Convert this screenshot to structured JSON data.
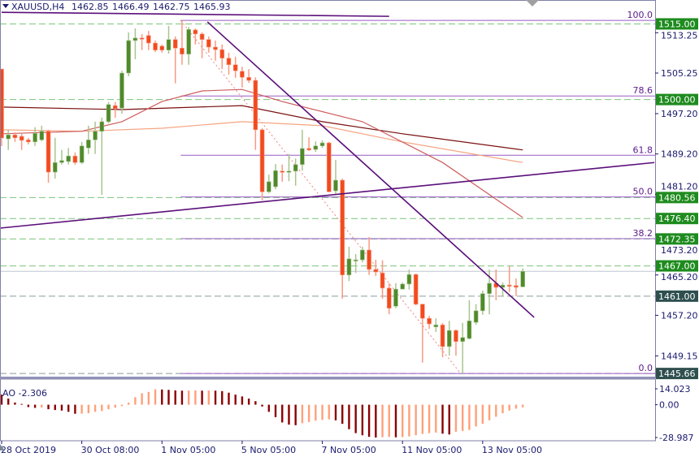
{
  "header": {
    "symbol": "XAUUSD,H4",
    "open": "1462.85",
    "high": "1466.49",
    "low": "1462.75",
    "close": "1465.93",
    "menu_icon": "triangle-down-icon"
  },
  "colors": {
    "bull": "#4f8a2b",
    "bear": "#f24a1e",
    "bull_wick": "#a9c48f",
    "bear_wick": "#f79a82",
    "level_green": "#1e8b1e",
    "level_dark": "#2f4f4f",
    "trendline": "#5b0f7a",
    "fib": "#9a5bc4",
    "ao_up": "#ffa07a",
    "ao_down": "#8b0000",
    "ma_slow": "#7a0f0f",
    "ma_mid": "#f4a582",
    "ma_fast": "#cd5c5c"
  },
  "chart_data": {
    "type": "candlestick",
    "symbol": "XAUUSD",
    "timeframe": "H4",
    "price_axis": {
      "ticks": [
        "1513.25",
        "1505.25",
        "1497.20",
        "1489.20",
        "1481.20",
        "1473.20",
        "1465.20",
        "1457.20",
        "1449.15"
      ],
      "range": [
        1445.0,
        1519.7
      ]
    },
    "time_axis": {
      "labels": [
        {
          "bar": 0,
          "text": "28 Oct 2019"
        },
        {
          "bar": 12,
          "text": "30 Oct 08:00"
        },
        {
          "bar": 24,
          "text": "1 Nov 05:00"
        },
        {
          "bar": 36,
          "text": "5 Nov 05:00"
        },
        {
          "bar": 48,
          "text": "7 Nov 05:00"
        },
        {
          "bar": 60,
          "text": "11 Nov 05:00"
        },
        {
          "bar": 72,
          "text": "13 Nov 05:00"
        }
      ]
    },
    "ohlc": [
      [
        1506.05,
        1506.05,
        1490.76,
        1492.37
      ],
      [
        1492.2,
        1494.0,
        1490.0,
        1493.0
      ],
      [
        1493.0,
        1493.5,
        1491.6,
        1492.4
      ],
      [
        1492.7,
        1493.2,
        1490.0,
        1491.9
      ],
      [
        1492.0,
        1492.4,
        1491.1,
        1491.6
      ],
      [
        1491.6,
        1494.5,
        1490.8,
        1493.3
      ],
      [
        1492.0,
        1494.8,
        1491.7,
        1493.7
      ],
      [
        1493.7,
        1494.0,
        1483.5,
        1485.6
      ],
      [
        1485.6,
        1492.4,
        1484.3,
        1487.5
      ],
      [
        1487.5,
        1490.0,
        1487.1,
        1487.9
      ],
      [
        1487.7,
        1490.4,
        1487.1,
        1488.8
      ],
      [
        1488.8,
        1489.5,
        1487.1,
        1487.5
      ],
      [
        1487.5,
        1491.6,
        1487.2,
        1490.8
      ],
      [
        1490.4,
        1494.8,
        1489.2,
        1492.0
      ],
      [
        1492.0,
        1495.6,
        1489.2,
        1493.7
      ],
      [
        1493.7,
        1496.4,
        1481.1,
        1495.6
      ],
      [
        1495.6,
        1499.5,
        1495.3,
        1499.0
      ],
      [
        1498.8,
        1499.5,
        1496.4,
        1498.2
      ],
      [
        1498.3,
        1505.7,
        1497.2,
        1505.25
      ],
      [
        1505.25,
        1513.3,
        1504.6,
        1511.7
      ],
      [
        1511.7,
        1514.1,
        1508.0,
        1512.2
      ],
      [
        1512.2,
        1513.0,
        1509.8,
        1512.0
      ],
      [
        1512.7,
        1513.6,
        1509.8,
        1511.2
      ],
      [
        1511.2,
        1511.7,
        1509.4,
        1509.8
      ],
      [
        1510.6,
        1510.9,
        1509.3,
        1509.8
      ],
      [
        1509.8,
        1514.6,
        1509.1,
        1511.9
      ],
      [
        1511.9,
        1512.5,
        1503.2,
        1510.2
      ],
      [
        1510.2,
        1515.7,
        1506.9,
        1509.0
      ],
      [
        1509.0,
        1514.4,
        1506.9,
        1513.9
      ],
      [
        1513.8,
        1514.1,
        1510.9,
        1513.0
      ],
      [
        1513.0,
        1513.3,
        1508.2,
        1511.9
      ],
      [
        1511.9,
        1512.5,
        1509.3,
        1510.4
      ],
      [
        1510.4,
        1511.7,
        1507.7,
        1509.9
      ],
      [
        1509.9,
        1510.9,
        1506.05,
        1508.2
      ],
      [
        1508.2,
        1509.3,
        1504.9,
        1506.9
      ],
      [
        1506.9,
        1508.5,
        1504.3,
        1505.7
      ],
      [
        1505.6,
        1506.5,
        1502.4,
        1504.4
      ],
      [
        1504.4,
        1506.05,
        1503.3,
        1503.8
      ],
      [
        1503.8,
        1504.4,
        1490.0,
        1494.0
      ],
      [
        1494.0,
        1494.3,
        1480.0,
        1481.7
      ],
      [
        1481.7,
        1485.1,
        1481.4,
        1483.7
      ],
      [
        1482.7,
        1487.2,
        1482.2,
        1485.9
      ],
      [
        1485.8,
        1487.1,
        1483.7,
        1485.6
      ],
      [
        1485.6,
        1489.2,
        1483.8,
        1485.8
      ],
      [
        1485.8,
        1488.3,
        1482.9,
        1487.1
      ],
      [
        1487.1,
        1494.0,
        1485.9,
        1490.3
      ],
      [
        1490.3,
        1492.5,
        1489.8,
        1490.0
      ],
      [
        1490.1,
        1491.7,
        1489.6,
        1490.8
      ],
      [
        1490.8,
        1491.9,
        1490.4,
        1491.4
      ],
      [
        1491.4,
        1491.6,
        1481.6,
        1481.7
      ],
      [
        1481.9,
        1488.0,
        1481.1,
        1484.0
      ],
      [
        1484.0,
        1484.3,
        1460.5,
        1465.2
      ],
      [
        1465.2,
        1470.8,
        1464.0,
        1468.4
      ],
      [
        1468.1,
        1469.35,
        1465.6,
        1468.2
      ],
      [
        1468.2,
        1470.8,
        1467.7,
        1470.15
      ],
      [
        1470.15,
        1472.7,
        1465.2,
        1466.3
      ],
      [
        1466.3,
        1468.2,
        1465.0,
        1465.8
      ],
      [
        1465.6,
        1468.1,
        1460.5,
        1462.6
      ],
      [
        1462.6,
        1463.55,
        1457.4,
        1458.6
      ],
      [
        1459.0,
        1463.55,
        1458.6,
        1462.4
      ],
      [
        1462.4,
        1463.7,
        1462.3,
        1463.4
      ],
      [
        1463.4,
        1466.3,
        1462.3,
        1465.3
      ],
      [
        1465.3,
        1465.5,
        1459.2,
        1459.4
      ],
      [
        1459.4,
        1459.5,
        1447.8,
        1456.6
      ],
      [
        1456.6,
        1457.1,
        1454.5,
        1455.5
      ],
      [
        1454.9,
        1456.6,
        1453.9,
        1455.3
      ],
      [
        1455.3,
        1455.7,
        1448.9,
        1451.0
      ],
      [
        1451.0,
        1456.1,
        1449.2,
        1454.2
      ],
      [
        1454.2,
        1454.4,
        1449.2,
        1452.0
      ],
      [
        1452.0,
        1455.7,
        1445.66,
        1452.8
      ],
      [
        1452.6,
        1460.2,
        1452.4,
        1456.1
      ],
      [
        1455.8,
        1459.4,
        1455.3,
        1458.1
      ],
      [
        1458.1,
        1462.1,
        1457.3,
        1461.5
      ],
      [
        1461.5,
        1466.3,
        1457.4,
        1463.55
      ],
      [
        1463.55,
        1466.3,
        1460.2,
        1462.75
      ],
      [
        1462.75,
        1463.7,
        1461.0,
        1463.2
      ],
      [
        1463.2,
        1466.9,
        1461.8,
        1463.1
      ],
      [
        1463.1,
        1464.5,
        1461.0,
        1462.75
      ],
      [
        1462.85,
        1466.49,
        1462.75,
        1465.93
      ]
    ],
    "moving_averages": [
      {
        "style": "ma_slow",
        "points": [
          [
            0,
            1498.5
          ],
          [
            18,
            1498.0
          ],
          [
            36,
            1498.8
          ],
          [
            48,
            1495.6
          ],
          [
            60,
            1493.2
          ],
          [
            78,
            1490.0
          ]
        ]
      },
      {
        "style": "ma_mid",
        "points": [
          [
            0,
            1494.0
          ],
          [
            12,
            1493.7
          ],
          [
            24,
            1494.3
          ],
          [
            36,
            1495.6
          ],
          [
            48,
            1494.8
          ],
          [
            60,
            1491.6
          ],
          [
            78,
            1487.5
          ]
        ]
      },
      {
        "style": "ma_fast",
        "points": [
          [
            0,
            1493.2
          ],
          [
            12,
            1493.7
          ],
          [
            18,
            1495.6
          ],
          [
            24,
            1499.6
          ],
          [
            30,
            1501.7
          ],
          [
            36,
            1502.0
          ],
          [
            42,
            1499.6
          ],
          [
            54,
            1495.6
          ],
          [
            66,
            1487.5
          ],
          [
            78,
            1476.6
          ]
        ]
      }
    ],
    "trendlines": [
      {
        "from": [
          0,
          1517.3
        ],
        "to": [
          58,
          1516.5
        ]
      },
      {
        "from": [
          30.8,
          1515.4
        ],
        "to": [
          79.7,
          1456.8
        ]
      },
      {
        "from": [
          -0.2,
          1474.5
        ],
        "to": [
          97.7,
          1487.5
        ]
      }
    ],
    "fibonacci": {
      "high": 1515.7,
      "low": 1445.66,
      "from_bar": 26.8,
      "to_bar": 68.7,
      "levels": [
        {
          "ratio": 1.0,
          "label": "100.0"
        },
        {
          "ratio": 0.786,
          "label": "78.6"
        },
        {
          "ratio": 0.618,
          "label": "61.8"
        },
        {
          "ratio": 0.5,
          "label": "50.0"
        },
        {
          "ratio": 0.382,
          "label": "38.2"
        },
        {
          "ratio": 0.0,
          "label": "0.0"
        }
      ]
    },
    "levels": [
      {
        "price": 1515.0,
        "label": "1515.00",
        "style": "green"
      },
      {
        "price": 1500.0,
        "label": "1500.00",
        "style": "green"
      },
      {
        "price": 1480.56,
        "label": "1480.56",
        "style": "green"
      },
      {
        "price": 1476.4,
        "label": "1476.40",
        "style": "green"
      },
      {
        "price": 1472.35,
        "label": "1472.35",
        "style": "green"
      },
      {
        "price": 1467.0,
        "label": "1467.00",
        "style": "green"
      },
      {
        "price": 1461.0,
        "label": "1461.00",
        "style": "dark"
      },
      {
        "price": 1445.66,
        "label": "1445.66",
        "style": "dark"
      }
    ],
    "current_price": 1465.93,
    "ao": {
      "label": "AO -2.306",
      "axis_ticks": [
        "14.023",
        "0.00",
        "-28.987"
      ],
      "range": [
        -28.987,
        14.023
      ],
      "values": [
        8.9,
        5.4,
        1.9,
        0.7,
        -2.1,
        -2.8,
        -2.5,
        -4.0,
        -4.7,
        -5.2,
        -6.3,
        -8.0,
        -7.9,
        -7.5,
        -6.3,
        -5.6,
        -4.0,
        -2.6,
        -1.2,
        1.9,
        6.6,
        10.1,
        11.3,
        13.6,
        13.4,
        13.1,
        12.6,
        12.4,
        12.5,
        12.6,
        12.4,
        12.5,
        12.4,
        12.0,
        10.6,
        8.9,
        7.3,
        5.4,
        3.1,
        -1.6,
        -6.3,
        -11.0,
        -15.7,
        -17.6,
        -18.1,
        -16.4,
        -15.3,
        -14.1,
        -13.4,
        -12.9,
        -13.8,
        -16.9,
        -21.6,
        -25.1,
        -27.0,
        -28.4,
        -28.99,
        -28.7,
        -28.5,
        -28.8,
        -28.6,
        -28.0,
        -27.0,
        -25.8,
        -25.1,
        -24.6,
        -25.6,
        -26.3,
        -23.9,
        -23.2,
        -22.3,
        -19.2,
        -16.9,
        -13.8,
        -10.6,
        -7.5,
        -5.2,
        -3.5,
        -2.31
      ]
    }
  }
}
